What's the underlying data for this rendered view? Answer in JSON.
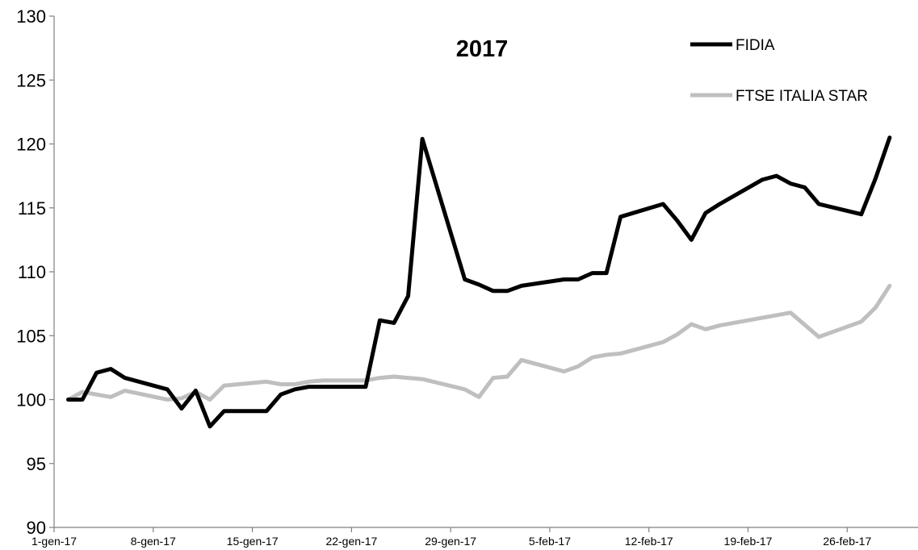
{
  "chart_data": {
    "type": "line",
    "title": "2017",
    "xlabel": "",
    "ylabel": "",
    "ylim": [
      90,
      130
    ],
    "yticks": [
      "90",
      "95",
      "100",
      "105",
      "110",
      "115",
      "120",
      "125",
      "130"
    ],
    "xlim": [
      "2017-01-01",
      "2017-03-03"
    ],
    "xticks": [
      {
        "date": "2017-01-01",
        "label": "1-gen-17"
      },
      {
        "date": "2017-01-08",
        "label": "8-gen-17"
      },
      {
        "date": "2017-01-15",
        "label": "15-gen-17"
      },
      {
        "date": "2017-01-22",
        "label": "22-gen-17"
      },
      {
        "date": "2017-01-29",
        "label": "29-gen-17"
      },
      {
        "date": "2017-02-05",
        "label": "5-feb-17"
      },
      {
        "date": "2017-02-12",
        "label": "12-feb-17"
      },
      {
        "date": "2017-02-19",
        "label": "19-feb-17"
      },
      {
        "date": "2017-02-26",
        "label": "26-feb-17"
      }
    ],
    "grid": false,
    "legend_position": "top-right",
    "series": [
      {
        "name": "FIDIA",
        "color": "#000000",
        "points": [
          [
            "2017-01-02",
            100.0
          ],
          [
            "2017-01-03",
            100.0
          ],
          [
            "2017-01-04",
            102.1
          ],
          [
            "2017-01-05",
            102.4
          ],
          [
            "2017-01-06",
            101.7
          ],
          [
            "2017-01-09",
            100.8
          ],
          [
            "2017-01-10",
            99.3
          ],
          [
            "2017-01-11",
            100.7
          ],
          [
            "2017-01-12",
            97.9
          ],
          [
            "2017-01-13",
            99.1
          ],
          [
            "2017-01-16",
            99.1
          ],
          [
            "2017-01-17",
            100.4
          ],
          [
            "2017-01-18",
            100.8
          ],
          [
            "2017-01-19",
            101.0
          ],
          [
            "2017-01-20",
            101.0
          ],
          [
            "2017-01-23",
            101.0
          ],
          [
            "2017-01-24",
            106.2
          ],
          [
            "2017-01-25",
            106.0
          ],
          [
            "2017-01-26",
            108.1
          ],
          [
            "2017-01-27",
            120.4
          ],
          [
            "2017-01-30",
            109.4
          ],
          [
            "2017-01-31",
            109.0
          ],
          [
            "2017-02-01",
            108.5
          ],
          [
            "2017-02-02",
            108.5
          ],
          [
            "2017-02-03",
            108.9
          ],
          [
            "2017-02-06",
            109.4
          ],
          [
            "2017-02-07",
            109.4
          ],
          [
            "2017-02-08",
            109.9
          ],
          [
            "2017-02-09",
            109.9
          ],
          [
            "2017-02-10",
            114.3
          ],
          [
            "2017-02-13",
            115.3
          ],
          [
            "2017-02-14",
            114.0
          ],
          [
            "2017-02-15",
            112.5
          ],
          [
            "2017-02-16",
            114.6
          ],
          [
            "2017-02-17",
            115.3
          ],
          [
            "2017-02-20",
            117.2
          ],
          [
            "2017-02-21",
            117.5
          ],
          [
            "2017-02-22",
            116.9
          ],
          [
            "2017-02-23",
            116.6
          ],
          [
            "2017-02-24",
            115.3
          ],
          [
            "2017-02-27",
            114.5
          ],
          [
            "2017-02-28",
            117.3
          ],
          [
            "2017-03-01",
            120.5
          ]
        ]
      },
      {
        "name": "FTSE ITALIA STAR",
        "color": "#bfbfbf",
        "points": [
          [
            "2017-01-02",
            100.0
          ],
          [
            "2017-01-03",
            100.6
          ],
          [
            "2017-01-04",
            100.4
          ],
          [
            "2017-01-05",
            100.2
          ],
          [
            "2017-01-06",
            100.7
          ],
          [
            "2017-01-09",
            100.0
          ],
          [
            "2017-01-10",
            100.1
          ],
          [
            "2017-01-11",
            100.6
          ],
          [
            "2017-01-12",
            100.0
          ],
          [
            "2017-01-13",
            101.1
          ],
          [
            "2017-01-16",
            101.4
          ],
          [
            "2017-01-17",
            101.2
          ],
          [
            "2017-01-18",
            101.2
          ],
          [
            "2017-01-19",
            101.4
          ],
          [
            "2017-01-20",
            101.5
          ],
          [
            "2017-01-23",
            101.5
          ],
          [
            "2017-01-24",
            101.7
          ],
          [
            "2017-01-25",
            101.8
          ],
          [
            "2017-01-26",
            101.7
          ],
          [
            "2017-01-27",
            101.6
          ],
          [
            "2017-01-30",
            100.8
          ],
          [
            "2017-01-31",
            100.2
          ],
          [
            "2017-02-01",
            101.7
          ],
          [
            "2017-02-02",
            101.8
          ],
          [
            "2017-02-03",
            103.1
          ],
          [
            "2017-02-06",
            102.2
          ],
          [
            "2017-02-07",
            102.6
          ],
          [
            "2017-02-08",
            103.3
          ],
          [
            "2017-02-09",
            103.5
          ],
          [
            "2017-02-10",
            103.6
          ],
          [
            "2017-02-13",
            104.5
          ],
          [
            "2017-02-14",
            105.1
          ],
          [
            "2017-02-15",
            105.9
          ],
          [
            "2017-02-16",
            105.5
          ],
          [
            "2017-02-17",
            105.8
          ],
          [
            "2017-02-20",
            106.4
          ],
          [
            "2017-02-21",
            106.6
          ],
          [
            "2017-02-22",
            106.8
          ],
          [
            "2017-02-24",
            104.9
          ],
          [
            "2017-02-27",
            106.1
          ],
          [
            "2017-02-28",
            107.2
          ],
          [
            "2017-03-01",
            108.9
          ]
        ]
      }
    ]
  }
}
